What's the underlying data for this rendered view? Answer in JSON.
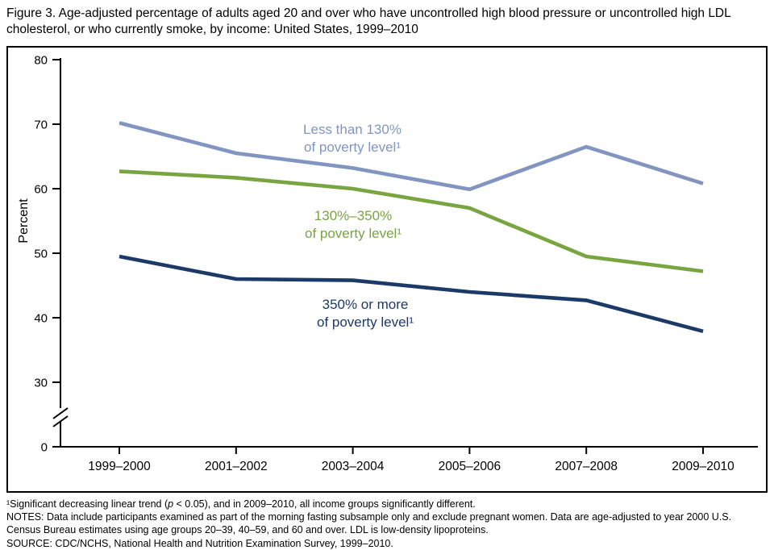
{
  "title": "Figure 3. Age-adjusted percentage of adults aged 20 and over who have  uncontrolled high blood pressure or uncontrolled high LDL cholesterol, or who currently smoke, by income: United States, 1999–2010",
  "chart_data": {
    "type": "line",
    "title": "Figure 3. Age-adjusted percentage of adults aged 20 and over who have uncontrolled high blood pressure or uncontrolled high LDL cholesterol, or who currently smoke, by income: United States, 1999–2010",
    "categories": [
      "1999–2000",
      "2001–2002",
      "2003–2004",
      "2005–2006",
      "2007–2008",
      "2009–2010"
    ],
    "series": [
      {
        "name": "Less than 130% of poverty level",
        "label_line1": "Less than 130%",
        "label_line2": "of poverty level¹",
        "color": "#8295c1",
        "values": [
          70.2,
          65.5,
          63.2,
          59.9,
          66.5,
          60.8
        ]
      },
      {
        "name": "130%–350% of poverty level",
        "label_line1": "130%–350%",
        "label_line2": "of poverty level¹",
        "color": "#78a53f",
        "values": [
          62.7,
          61.7,
          60.0,
          57.0,
          49.5,
          47.2
        ]
      },
      {
        "name": "350% or more of poverty level",
        "label_line1": "350% or more",
        "label_line2": "of poverty level¹",
        "color": "#1c3a68",
        "values": [
          49.5,
          46.0,
          45.8,
          44.0,
          42.7,
          37.9
        ]
      }
    ],
    "xlabel": "",
    "ylabel": "Percent",
    "y_ticks": [
      80,
      70,
      60,
      50,
      40,
      30,
      0
    ],
    "ylim": [
      0,
      80
    ],
    "axis_break": true,
    "grid": false,
    "legend": "inline-labels"
  },
  "footnotes": {
    "fn1_pre": "¹Significant decreasing linear trend (",
    "fn1_p": "p",
    "fn1_post": " < 0.05), and in 2009–2010, all income groups significantly different.",
    "notes": "NOTES: Data include participants examined as part of the morning fasting subsample only and exclude pregnant women. Data are age-adjusted to year 2000 U.S. Census Bureau estimates using age groups 20–39, 40–59, and 60 and over. LDL is low-density lipoproteins.",
    "source": "SOURCE: CDC/NCHS, National Health and Nutrition Examination Survey, 1999–2010."
  }
}
